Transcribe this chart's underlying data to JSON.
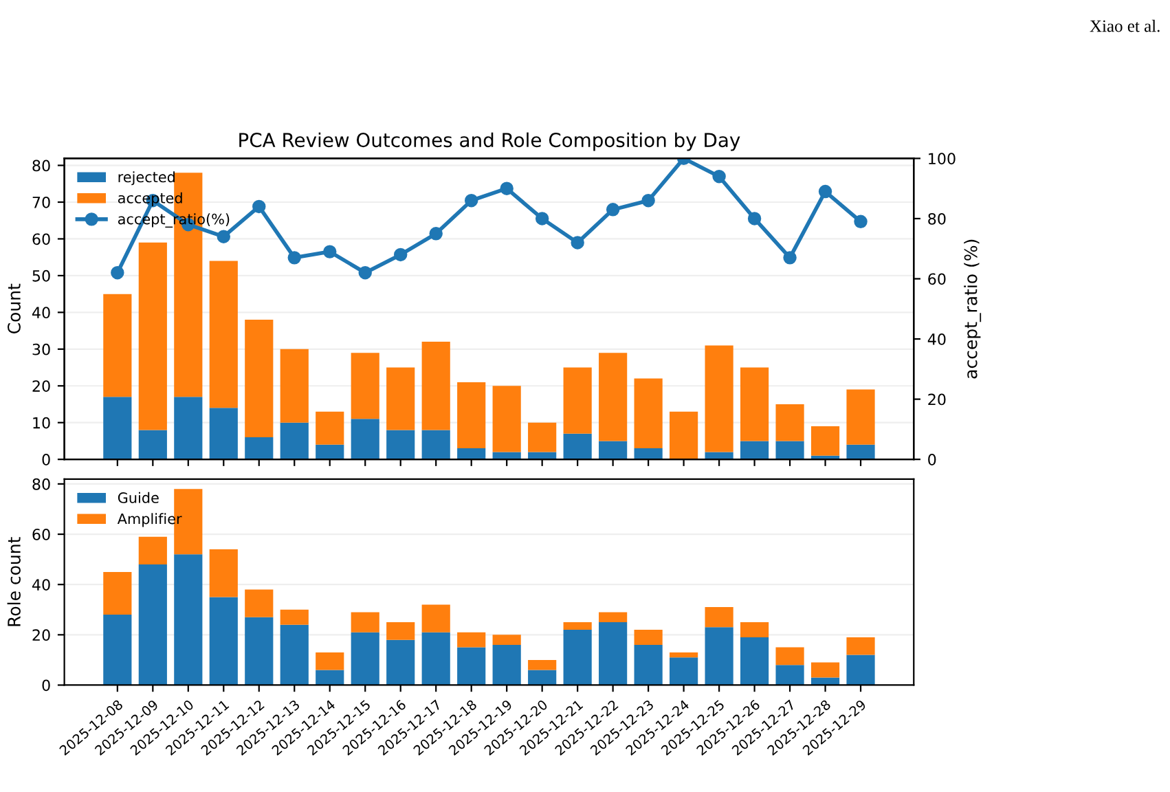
{
  "chart_data": [
    {
      "type": "bar",
      "title": "PCA Review Outcomes and Role Composition by Day",
      "ylabel": "Count",
      "y2label": "accept_ratio (%)",
      "annotations": [
        "Xiao et al."
      ],
      "categories": [
        "2025-12-08",
        "2025-12-09",
        "2025-12-10",
        "2025-12-11",
        "2025-12-12",
        "2025-12-13",
        "2025-12-14",
        "2025-12-15",
        "2025-12-16",
        "2025-12-17",
        "2025-12-18",
        "2025-12-19",
        "2025-12-20",
        "2025-12-21",
        "2025-12-22",
        "2025-12-23",
        "2025-12-24",
        "2025-12-25",
        "2025-12-26",
        "2025-12-27",
        "2025-12-28",
        "2025-12-29"
      ],
      "stacked": true,
      "series": [
        {
          "name": "rejected",
          "color": "#1f77b4",
          "values": [
            17,
            8,
            17,
            14,
            6,
            10,
            4,
            11,
            8,
            8,
            3,
            2,
            2,
            7,
            5,
            3,
            0,
            2,
            5,
            5,
            1,
            4
          ]
        },
        {
          "name": "accepted",
          "color": "#ff7f0e",
          "values": [
            28,
            51,
            61,
            40,
            32,
            20,
            9,
            18,
            17,
            24,
            18,
            18,
            8,
            18,
            24,
            19,
            13,
            29,
            20,
            10,
            8,
            15
          ]
        },
        {
          "name": "accept_ratio(%)",
          "type": "line",
          "axis": "y2",
          "marker": "circle",
          "color": "#1f77b4",
          "values": [
            62,
            86,
            78,
            74,
            84,
            67,
            69,
            62,
            68,
            75,
            86,
            90,
            80,
            72,
            83,
            86,
            100,
            94,
            80,
            67,
            89,
            79
          ]
        }
      ],
      "ylim": [
        0,
        81.9
      ],
      "yticks": [
        0,
        10,
        20,
        30,
        40,
        50,
        60,
        70,
        80
      ],
      "y2lim": [
        0,
        100
      ],
      "y2ticks": [
        0,
        20,
        40,
        60,
        80,
        100
      ],
      "grid": "y",
      "legend": "top left",
      "tick_labels": "y"
    },
    {
      "type": "bar",
      "ylabel": "Role count",
      "categories": [
        "2025-12-08",
        "2025-12-09",
        "2025-12-10",
        "2025-12-11",
        "2025-12-12",
        "2025-12-13",
        "2025-12-14",
        "2025-12-15",
        "2025-12-16",
        "2025-12-17",
        "2025-12-18",
        "2025-12-19",
        "2025-12-20",
        "2025-12-21",
        "2025-12-22",
        "2025-12-23",
        "2025-12-24",
        "2025-12-25",
        "2025-12-26",
        "2025-12-27",
        "2025-12-28",
        "2025-12-29"
      ],
      "stacked": true,
      "series": [
        {
          "name": "Guide",
          "color": "#1f77b4",
          "values": [
            28,
            48,
            52,
            35,
            27,
            24,
            6,
            21,
            18,
            21,
            15,
            16,
            6,
            22,
            25,
            16,
            11,
            23,
            19,
            8,
            3,
            12
          ]
        },
        {
          "name": "Amplifier",
          "color": "#ff7f0e",
          "values": [
            17,
            11,
            26,
            19,
            11,
            6,
            7,
            8,
            7,
            11,
            6,
            4,
            4,
            3,
            4,
            6,
            2,
            8,
            6,
            7,
            6,
            7
          ]
        }
      ],
      "ylim": [
        0,
        81.9
      ],
      "yticks": [
        0,
        20,
        40,
        60,
        80
      ],
      "grid": "y",
      "legend": "top left"
    }
  ]
}
